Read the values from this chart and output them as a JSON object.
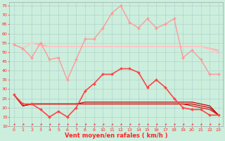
{
  "xlabel": "Vent moyen/en rafales ( km/h )",
  "background_color": "#cceedd",
  "grid_color": "#aacccc",
  "xlim": [
    -0.5,
    23.5
  ],
  "ylim": [
    10,
    77
  ],
  "yticks": [
    10,
    15,
    20,
    25,
    30,
    35,
    40,
    45,
    50,
    55,
    60,
    65,
    70,
    75
  ],
  "xticks": [
    0,
    1,
    2,
    3,
    4,
    5,
    6,
    7,
    8,
    9,
    10,
    11,
    12,
    13,
    14,
    15,
    16,
    17,
    18,
    19,
    20,
    21,
    22,
    23
  ],
  "series": [
    {
      "name": "rafales_high",
      "y": [
        54,
        52,
        47,
        55,
        46,
        47,
        35,
        46,
        57,
        57,
        63,
        71,
        75,
        66,
        63,
        68,
        63,
        65,
        68,
        47,
        51,
        46,
        38,
        38
      ],
      "color": "#ff9999",
      "lw": 1.0,
      "marker": "D",
      "ms": 2.0
    },
    {
      "name": "mean_high1",
      "y": [
        54,
        52,
        55,
        54,
        53,
        53,
        53,
        53,
        53,
        53,
        53,
        53,
        53,
        53,
        53,
        53,
        53,
        53,
        53,
        53,
        53,
        53,
        52,
        51
      ],
      "color": "#ffaaaa",
      "lw": 1.0,
      "marker": null,
      "ms": 0
    },
    {
      "name": "mean_high2",
      "y": [
        54,
        52,
        55,
        53,
        53,
        53,
        53,
        53,
        53,
        53,
        53,
        53,
        53,
        53,
        53,
        53,
        53,
        53,
        53,
        53,
        53,
        53,
        52,
        50
      ],
      "color": "#ffbbbb",
      "lw": 1.0,
      "marker": null,
      "ms": 0
    },
    {
      "name": "mean_high3",
      "y": [
        54,
        52,
        55,
        53,
        53,
        53,
        53,
        53,
        53,
        53,
        53,
        53,
        53,
        53,
        53,
        53,
        53,
        53,
        53,
        53,
        53,
        53,
        51,
        49
      ],
      "color": "#ffcccc",
      "lw": 1.0,
      "marker": null,
      "ms": 0
    },
    {
      "name": "rafales_low",
      "y": [
        27,
        22,
        22,
        19,
        15,
        18,
        15,
        20,
        29,
        33,
        38,
        38,
        41,
        41,
        39,
        31,
        35,
        31,
        25,
        20,
        19,
        19,
        16,
        16
      ],
      "color": "#ff4444",
      "lw": 1.2,
      "marker": "D",
      "ms": 2.0
    },
    {
      "name": "mean_low1",
      "y": [
        27,
        21,
        22,
        22,
        22,
        22,
        22,
        22,
        23,
        23,
        23,
        23,
        23,
        23,
        23,
        23,
        23,
        23,
        23,
        23,
        23,
        22,
        21,
        16
      ],
      "color": "#cc0000",
      "lw": 0.9,
      "marker": null,
      "ms": 0
    },
    {
      "name": "mean_low2",
      "y": [
        27,
        21,
        22,
        22,
        22,
        22,
        22,
        22,
        22,
        22,
        22,
        22,
        22,
        22,
        22,
        22,
        22,
        22,
        22,
        22,
        22,
        21,
        20,
        16
      ],
      "color": "#cc0000",
      "lw": 0.9,
      "marker": null,
      "ms": 0
    },
    {
      "name": "mean_low3",
      "y": [
        27,
        21,
        22,
        22,
        22,
        22,
        22,
        22,
        22,
        22,
        22,
        22,
        22,
        22,
        22,
        22,
        22,
        22,
        22,
        22,
        21,
        20,
        19,
        16
      ],
      "color": "#dd1111",
      "lw": 0.9,
      "marker": null,
      "ms": 0
    }
  ],
  "arrow_color": "#ff2222",
  "xlabel_color": "#ff2222",
  "tick_color": "#ff2222",
  "xlabel_fontsize": 6.0,
  "tick_fontsize": 4.5
}
